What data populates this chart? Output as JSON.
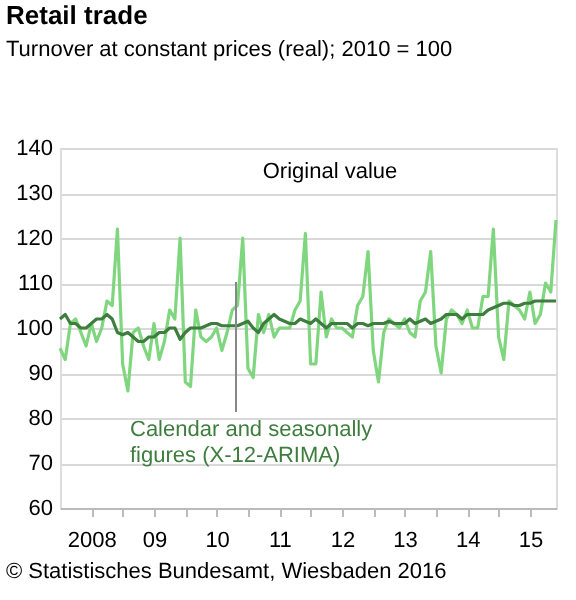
{
  "chart_data": {
    "type": "line",
    "title": "Retail trade",
    "subtitle": "Turnover at constant prices (real);  2010 = 100",
    "x": [
      "2008-01",
      "2008-02",
      "2008-03",
      "2008-04",
      "2008-05",
      "2008-06",
      "2008-07",
      "2008-08",
      "2008-09",
      "2008-10",
      "2008-11",
      "2008-12",
      "2009-01",
      "2009-02",
      "2009-03",
      "2009-04",
      "2009-05",
      "2009-06",
      "2009-07",
      "2009-08",
      "2009-09",
      "2009-10",
      "2009-11",
      "2009-12",
      "2010-01",
      "2010-02",
      "2010-03",
      "2010-04",
      "2010-05",
      "2010-06",
      "2010-07",
      "2010-08",
      "2010-09",
      "2010-10",
      "2010-11",
      "2010-12",
      "2011-01",
      "2011-02",
      "2011-03",
      "2011-04",
      "2011-05",
      "2011-06",
      "2011-07",
      "2011-08",
      "2011-09",
      "2011-10",
      "2011-11",
      "2011-12",
      "2012-01",
      "2012-02",
      "2012-03",
      "2012-04",
      "2012-05",
      "2012-06",
      "2012-07",
      "2012-08",
      "2012-09",
      "2012-10",
      "2012-11",
      "2012-12",
      "2013-01",
      "2013-02",
      "2013-03",
      "2013-04",
      "2013-05",
      "2013-06",
      "2013-07",
      "2013-08",
      "2013-09",
      "2013-10",
      "2013-11",
      "2013-12",
      "2014-01",
      "2014-02",
      "2014-03",
      "2014-04",
      "2014-05",
      "2014-06",
      "2014-07",
      "2014-08",
      "2014-09",
      "2014-10",
      "2014-11",
      "2014-12",
      "2015-01",
      "2015-02",
      "2015-03",
      "2015-04",
      "2015-05",
      "2015-06",
      "2015-07",
      "2015-08",
      "2015-09",
      "2015-10",
      "2015-11",
      "2015-12"
    ],
    "series": [
      {
        "name": "Original value",
        "color": "#7fd67f",
        "values": [
          95.5,
          93,
          101,
          102,
          99,
          96,
          101,
          97,
          100,
          106,
          105,
          122,
          92,
          86,
          99,
          100,
          96,
          93,
          101,
          93,
          97,
          104,
          102,
          120,
          88,
          87,
          104,
          98,
          97,
          98,
          100,
          95,
          99,
          104,
          105,
          120,
          91,
          89,
          103,
          99,
          103,
          98,
          100,
          100,
          100,
          104,
          106,
          121,
          92,
          92,
          108,
          98,
          102,
          100,
          100,
          99,
          98,
          105,
          107,
          117,
          95,
          88,
          99,
          102,
          101,
          100,
          102,
          99,
          98,
          106,
          108,
          117,
          96,
          90,
          102,
          104,
          103,
          101,
          104,
          100,
          100,
          107,
          107,
          122,
          98,
          93,
          106,
          105,
          104,
          102,
          108,
          101,
          103,
          110,
          108,
          124
        ]
      },
      {
        "name": "Calendar and seasonally figures (X-12-ARIMA)",
        "color": "#3d7d3d",
        "values": [
          102,
          103,
          101,
          101,
          100,
          100,
          101,
          102,
          102,
          103,
          102,
          99,
          98.5,
          99,
          98,
          97,
          97,
          98,
          98,
          99,
          99,
          100,
          100,
          97.5,
          99,
          100,
          100,
          100,
          100.5,
          101,
          101,
          100.5,
          100.5,
          100.5,
          100.5,
          101,
          101.5,
          100,
          99,
          101,
          102,
          103,
          102,
          101.5,
          101,
          101,
          102,
          101.5,
          101,
          102,
          101,
          100,
          101,
          101,
          101,
          101,
          100,
          101,
          101,
          100.5,
          101,
          101,
          101,
          101.5,
          101,
          101,
          101,
          102,
          101,
          101.5,
          102,
          101,
          101.5,
          102,
          103,
          103,
          103,
          102,
          103,
          103,
          103,
          103,
          104,
          104.5,
          105,
          105.5,
          105.5,
          105,
          105,
          105.5,
          105.5,
          106,
          106,
          106,
          106,
          106
        ]
      }
    ],
    "xlim": [
      "2008-01",
      "2015-12"
    ],
    "xticks": [
      {
        "value": "2008-07",
        "label": "2008"
      },
      {
        "value": "2009-01",
        "label": null
      },
      {
        "value": "2009-07",
        "label": "09"
      },
      {
        "value": "2010-01",
        "label": null
      },
      {
        "value": "2010-07",
        "label": "10"
      },
      {
        "value": "2011-01",
        "label": null
      },
      {
        "value": "2011-07",
        "label": "11"
      },
      {
        "value": "2012-01",
        "label": null
      },
      {
        "value": "2012-07",
        "label": "12"
      },
      {
        "value": "2013-01",
        "label": null
      },
      {
        "value": "2013-07",
        "label": "13"
      },
      {
        "value": "2014-01",
        "label": null
      },
      {
        "value": "2014-07",
        "label": "14"
      },
      {
        "value": "2015-01",
        "label": null
      },
      {
        "value": "2015-07",
        "label": "15"
      }
    ],
    "ylim": [
      60,
      140
    ],
    "yticks": [
      60,
      70,
      80,
      90,
      100,
      110,
      120,
      130,
      140
    ],
    "grid": "y",
    "legend": false,
    "marker": "none",
    "line_style": "solid",
    "annotations": [
      "© Statistisches Bundesamt, Wiesbaden 2016"
    ]
  }
}
